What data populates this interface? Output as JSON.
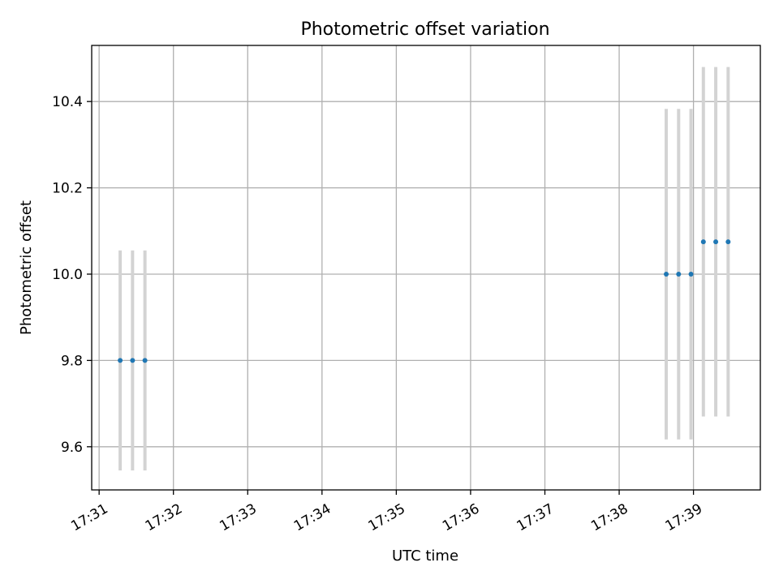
{
  "chart_data": {
    "type": "scatter",
    "title": "Photometric offset variation",
    "xlabel": "UTC time",
    "ylabel": "Photometric offset",
    "x_ticks": [
      "17:31",
      "17:32",
      "17:33",
      "17:34",
      "17:35",
      "17:36",
      "17:37",
      "17:38",
      "17:39"
    ],
    "y_ticks": [
      "9.6",
      "9.8",
      "10.0",
      "10.2",
      "10.4"
    ],
    "xlim": [
      "17:30:54",
      "17:39:54"
    ],
    "ylim": [
      9.5,
      10.53
    ],
    "grid": true,
    "legend": "none",
    "colors": {
      "marker": "#1f77b4",
      "errorbar": "#d3d3d3"
    },
    "series": [
      {
        "x": [
          "17:31:17",
          "17:31:27",
          "17:31:37",
          "17:38:38",
          "17:38:48",
          "17:38:58",
          "17:39:08",
          "17:39:18",
          "17:39:28"
        ],
        "y": [
          9.8,
          9.8,
          9.8,
          10.0,
          10.0,
          10.0,
          10.075,
          10.075,
          10.075
        ],
        "yerr": [
          0.255,
          0.255,
          0.255,
          0.383,
          0.383,
          0.383,
          0.405,
          0.405,
          0.405
        ]
      }
    ]
  }
}
